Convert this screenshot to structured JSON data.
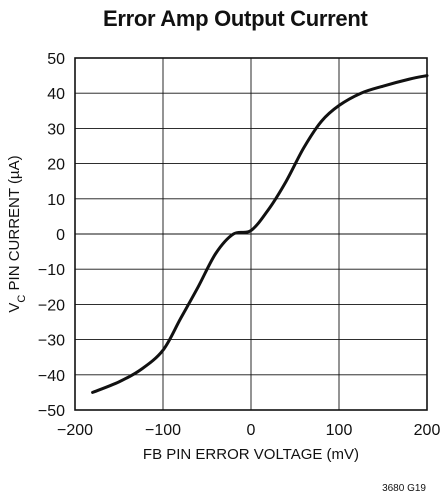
{
  "chart_data": {
    "type": "line",
    "title": "Error Amp Output Current",
    "xlabel": "FB PIN ERROR VOLTAGE (mV)",
    "ylabel": {
      "main": "V",
      "sub": "C",
      "rest": " PIN CURRENT (µA)"
    },
    "xlim": [
      -200,
      200
    ],
    "ylim": [
      -50,
      50
    ],
    "xticks": [
      -200,
      -100,
      0,
      100,
      200
    ],
    "yticks": [
      50,
      40,
      30,
      20,
      10,
      0,
      -10,
      -20,
      -30,
      -40,
      -50
    ],
    "xtick_labels": [
      "−200",
      "−100",
      "0",
      "100",
      "200"
    ],
    "ytick_labels": [
      "50",
      "40",
      "30",
      "20",
      "10",
      "0",
      "−10",
      "−20",
      "−30",
      "−40",
      "−50"
    ],
    "grid": true,
    "figure_id": "3680 G19",
    "series": [
      {
        "x": [
          -180,
          -150,
          -125,
          -100,
          -80,
          -60,
          -40,
          -20,
          0,
          20,
          40,
          60,
          80,
          100,
          125,
          150,
          180,
          200
        ],
        "y": [
          -45,
          -42,
          -38.5,
          -33,
          -24,
          -15,
          -5.5,
          0,
          1,
          7,
          15,
          24.5,
          32,
          36.5,
          40,
          42,
          44,
          45
        ]
      }
    ]
  }
}
